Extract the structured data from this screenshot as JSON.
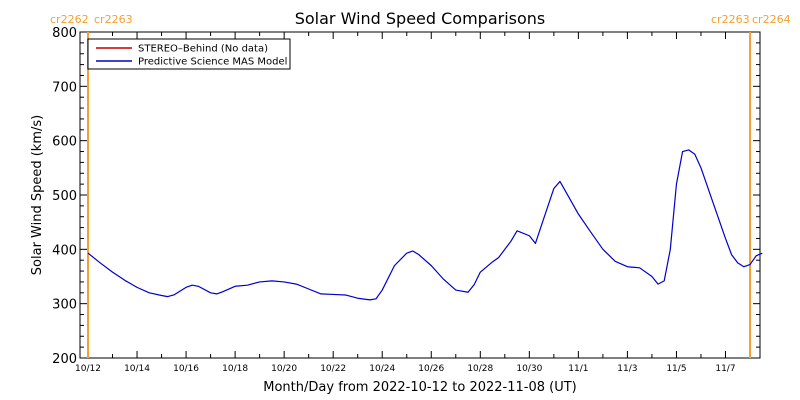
{
  "chart_data": {
    "type": "line",
    "title": "Solar Wind Speed Comparisons",
    "xlabel": "Month/Day from 2022-10-12 to 2022-11-08 (UT)",
    "ylabel": "Solar Wind Speed (km/s)",
    "x_start": "2022-10-12",
    "x_end": "2022-11-08",
    "ylim": [
      200,
      800
    ],
    "y_ticks": [
      200,
      300,
      400,
      500,
      600,
      700,
      800
    ],
    "x_ticks": [
      {
        "date": "2022-10-12",
        "label": "10/12"
      },
      {
        "date": "2022-10-14",
        "label": "10/14"
      },
      {
        "date": "2022-10-16",
        "label": "10/16"
      },
      {
        "date": "2022-10-18",
        "label": "10/18"
      },
      {
        "date": "2022-10-20",
        "label": "10/20"
      },
      {
        "date": "2022-10-22",
        "label": "10/22"
      },
      {
        "date": "2022-10-24",
        "label": "10/24"
      },
      {
        "date": "2022-10-26",
        "label": "10/26"
      },
      {
        "date": "2022-10-28",
        "label": "10/28"
      },
      {
        "date": "2022-10-30",
        "label": "10/30"
      },
      {
        "date": "2022-11-01",
        "label": "11/1"
      },
      {
        "date": "2022-11-03",
        "label": "11/3"
      },
      {
        "date": "2022-11-05",
        "label": "11/5"
      },
      {
        "date": "2022-11-07",
        "label": "11/7"
      }
    ],
    "carrington_markers": [
      {
        "date": "2022-10-12",
        "labels": [
          "cr2262",
          "cr2263"
        ]
      },
      {
        "date": "2022-11-08",
        "labels": [
          "cr2263",
          "cr2264"
        ]
      }
    ],
    "marker_color": "#f5a030",
    "legend_position": "top-left",
    "series": [
      {
        "name": "STEREO–Behind (No data)",
        "color": "#c00000",
        "points": []
      },
      {
        "name": "Predictive Science MAS Model",
        "color": "#0000cc",
        "points": [
          [
            "2022-10-12T00:00",
            393
          ],
          [
            "2022-10-12T12:00",
            375
          ],
          [
            "2022-10-13T00:00",
            358
          ],
          [
            "2022-10-13T12:00",
            343
          ],
          [
            "2022-10-14T00:00",
            330
          ],
          [
            "2022-10-14T12:00",
            320
          ],
          [
            "2022-10-15T00:00",
            315
          ],
          [
            "2022-10-15T06:00",
            313
          ],
          [
            "2022-10-15T12:00",
            316
          ],
          [
            "2022-10-16T00:00",
            330
          ],
          [
            "2022-10-16T06:00",
            334
          ],
          [
            "2022-10-16T12:00",
            332
          ],
          [
            "2022-10-17T00:00",
            320
          ],
          [
            "2022-10-17T06:00",
            318
          ],
          [
            "2022-10-17T12:00",
            322
          ],
          [
            "2022-10-18T00:00",
            332
          ],
          [
            "2022-10-18T12:00",
            334
          ],
          [
            "2022-10-19T00:00",
            340
          ],
          [
            "2022-10-19T12:00",
            342
          ],
          [
            "2022-10-20T00:00",
            340
          ],
          [
            "2022-10-20T12:00",
            336
          ],
          [
            "2022-10-21T00:00",
            327
          ],
          [
            "2022-10-21T12:00",
            318
          ],
          [
            "2022-10-22T00:00",
            317
          ],
          [
            "2022-10-22T12:00",
            316
          ],
          [
            "2022-10-23T00:00",
            310
          ],
          [
            "2022-10-23T12:00",
            307
          ],
          [
            "2022-10-23T18:00",
            309
          ],
          [
            "2022-10-24T00:00",
            325
          ],
          [
            "2022-10-24T12:00",
            370
          ],
          [
            "2022-10-25T00:00",
            393
          ],
          [
            "2022-10-25T06:00",
            397
          ],
          [
            "2022-10-25T12:00",
            390
          ],
          [
            "2022-10-26T00:00",
            370
          ],
          [
            "2022-10-26T12:00",
            345
          ],
          [
            "2022-10-27T00:00",
            325
          ],
          [
            "2022-10-27T12:00",
            321
          ],
          [
            "2022-10-27T18:00",
            335
          ],
          [
            "2022-10-28T00:00",
            358
          ],
          [
            "2022-10-28T12:00",
            377
          ],
          [
            "2022-10-28T18:00",
            385
          ],
          [
            "2022-10-29T06:00",
            415
          ],
          [
            "2022-10-29T12:00",
            434
          ],
          [
            "2022-10-30T00:00",
            425
          ],
          [
            "2022-10-30T06:00",
            411
          ],
          [
            "2022-10-30T12:00",
            445
          ],
          [
            "2022-10-31T00:00",
            512
          ],
          [
            "2022-10-31T06:00",
            525
          ],
          [
            "2022-10-31T12:00",
            505
          ],
          [
            "2022-11-01T00:00",
            465
          ],
          [
            "2022-11-01T12:00",
            432
          ],
          [
            "2022-11-02T00:00",
            400
          ],
          [
            "2022-11-02T12:00",
            378
          ],
          [
            "2022-11-03T00:00",
            368
          ],
          [
            "2022-11-03T12:00",
            366
          ],
          [
            "2022-11-04T00:00",
            350
          ],
          [
            "2022-11-04T06:00",
            336
          ],
          [
            "2022-11-04T12:00",
            342
          ],
          [
            "2022-11-04T18:00",
            400
          ],
          [
            "2022-11-05T00:00",
            520
          ],
          [
            "2022-11-05T06:00",
            580
          ],
          [
            "2022-11-05T12:00",
            583
          ],
          [
            "2022-11-05T18:00",
            575
          ],
          [
            "2022-11-06T00:00",
            550
          ],
          [
            "2022-11-06T12:00",
            485
          ],
          [
            "2022-11-07T00:00",
            420
          ],
          [
            "2022-11-07T06:00",
            390
          ],
          [
            "2022-11-07T12:00",
            375
          ],
          [
            "2022-11-07T18:00",
            368
          ],
          [
            "2022-11-08T00:00",
            372
          ],
          [
            "2022-11-08T06:00",
            388
          ],
          [
            "2022-11-08T12:00",
            393
          ]
        ]
      }
    ]
  }
}
